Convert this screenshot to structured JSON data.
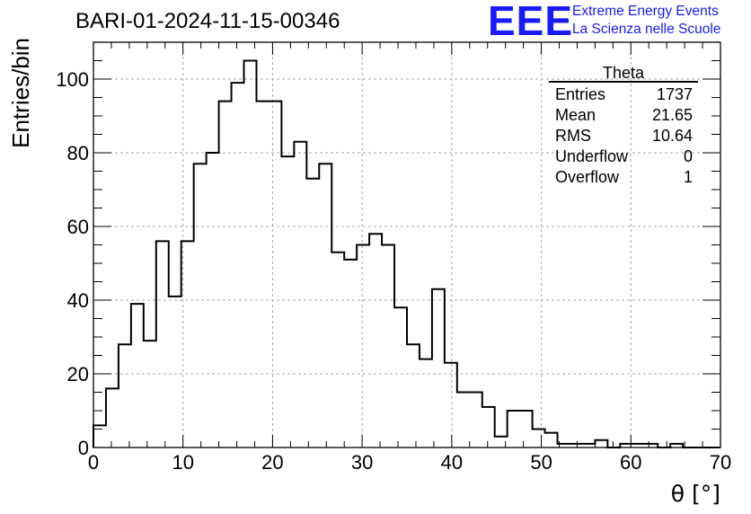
{
  "title": "BARI-01-2024-11-15-00346",
  "logo": {
    "mark": "EEE",
    "line1": "Extreme Energy Events",
    "line2": "La Scienza nelle Scuole",
    "color": "#1a1aff"
  },
  "stats": {
    "name": "Theta",
    "rows": [
      {
        "label": "Entries",
        "value": "1737"
      },
      {
        "label": "Mean",
        "value": "21.65"
      },
      {
        "label": "RMS",
        "value": "10.64"
      },
      {
        "label": "Underflow",
        "value": "0"
      },
      {
        "label": "Overflow",
        "value": "1"
      }
    ]
  },
  "chart_data": {
    "type": "histogram",
    "xlabel": "θ [°]",
    "ylabel": "Entries/bin",
    "xlim": [
      0,
      70
    ],
    "ylim": [
      0,
      110
    ],
    "bin_width": 1.4,
    "xticks": [
      0,
      10,
      20,
      30,
      40,
      50,
      60,
      70
    ],
    "yticks": [
      0,
      20,
      40,
      60,
      80,
      100
    ],
    "grid": true,
    "values": [
      6,
      16,
      28,
      39,
      29,
      56,
      41,
      56,
      77,
      80,
      94,
      99,
      105,
      94,
      94,
      79,
      83,
      73,
      77,
      53,
      51,
      55,
      58,
      55,
      38,
      28,
      24,
      43,
      23,
      15,
      15,
      11,
      3,
      10,
      10,
      5,
      4,
      1,
      1,
      1,
      2,
      0,
      1,
      1,
      1,
      0,
      1,
      0,
      0,
      0
    ]
  }
}
